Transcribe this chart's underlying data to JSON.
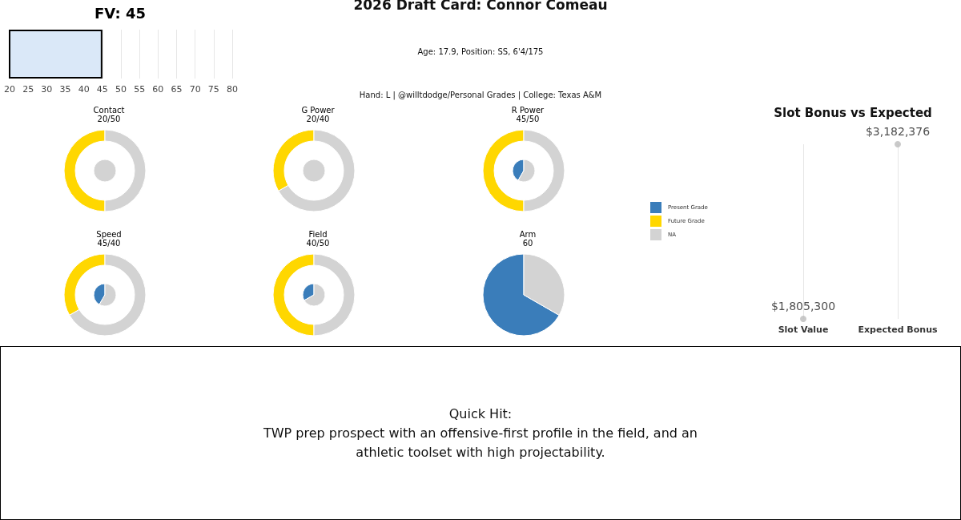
{
  "chart_data": [
    {
      "type": "bar",
      "title": "FV: 45",
      "orientation": "horizontal",
      "categories": [
        null
      ],
      "values": [
        45
      ],
      "color": "#dae8f8",
      "xlim": [
        20,
        80
      ],
      "xticks": [
        20,
        25,
        30,
        35,
        40,
        45,
        50,
        55,
        60,
        65,
        70,
        75,
        80
      ],
      "grid": "x"
    },
    {
      "type": "other",
      "title": "2026 Draft Card: Connor Comeau",
      "subtitle": "Age: 17.9, Position: SS, 6'4/175",
      "annotations": [
        "Hand: L | @willtdodge/Personal Grades | College: Texas A&M"
      ]
    },
    {
      "type": "donut",
      "title": "Contact",
      "subtitle": "20/50",
      "series": [
        {
          "type": "pie",
          "values": [
            0,
            100
          ],
          "colors": [
            "#3a7dba",
            "#d3d3d3"
          ]
        },
        {
          "type": "donut",
          "values": [
            50,
            50
          ],
          "colors": [
            "#ffd700",
            "#d3d3d3"
          ]
        }
      ]
    },
    {
      "type": "donut",
      "title": "G Power",
      "subtitle": "20/40",
      "series": [
        {
          "type": "pie",
          "values": [
            0,
            100
          ],
          "colors": [
            "#3a7dba",
            "#d3d3d3"
          ]
        },
        {
          "type": "donut",
          "values": [
            33.3,
            66.7
          ],
          "colors": [
            "#ffd700",
            "#d3d3d3"
          ]
        }
      ]
    },
    {
      "type": "donut",
      "title": "R Power",
      "subtitle": "45/50",
      "series": [
        {
          "type": "pie",
          "values": [
            41.7,
            58.3
          ],
          "colors": [
            "#3a7dba",
            "#d3d3d3"
          ]
        },
        {
          "type": "donut",
          "values": [
            50,
            50
          ],
          "colors": [
            "#ffd700",
            "#d3d3d3"
          ]
        }
      ]
    },
    {
      "type": "other",
      "categories": [
        "Present Grade",
        "Future Grade",
        "NA"
      ],
      "colors": [
        "#3a7dba",
        "#ffd700",
        "#d3d3d3"
      ]
    },
    {
      "type": "scatter",
      "title": "Slot Bonus vs Expected",
      "categories": [
        "Slot Value",
        "Expected Bonus"
      ],
      "values": [
        1805300,
        3182376
      ],
      "value_labels": [
        "$1,805,300",
        "$3,182,376"
      ],
      "marker": "circle",
      "color": "#bbbbbb",
      "grid": "x"
    },
    {
      "type": "donut",
      "title": "Speed",
      "subtitle": "45/40",
      "series": [
        {
          "type": "pie",
          "values": [
            41.7,
            58.3
          ],
          "colors": [
            "#3a7dba",
            "#d3d3d3"
          ]
        },
        {
          "type": "donut",
          "values": [
            33.3,
            66.7
          ],
          "colors": [
            "#ffd700",
            "#d3d3d3"
          ]
        }
      ]
    },
    {
      "type": "donut",
      "title": "Field",
      "subtitle": "40/50",
      "series": [
        {
          "type": "pie",
          "values": [
            33.3,
            66.7
          ],
          "colors": [
            "#3a7dba",
            "#d3d3d3"
          ]
        },
        {
          "type": "donut",
          "values": [
            50,
            50
          ],
          "colors": [
            "#ffd700",
            "#d3d3d3"
          ]
        }
      ]
    },
    {
      "type": "pie",
      "title": "Arm",
      "subtitle": "60",
      "series": [
        {
          "type": "pie",
          "values": [
            66.7,
            33.3
          ],
          "colors": [
            "#3a7dba",
            "#d3d3d3"
          ]
        }
      ]
    },
    {
      "type": "other",
      "title": "Quick Hit:",
      "annotations": [
        "TWP prep prospect with an offensive-first profile in the field, and an athletic toolset with high projectability."
      ]
    }
  ]
}
